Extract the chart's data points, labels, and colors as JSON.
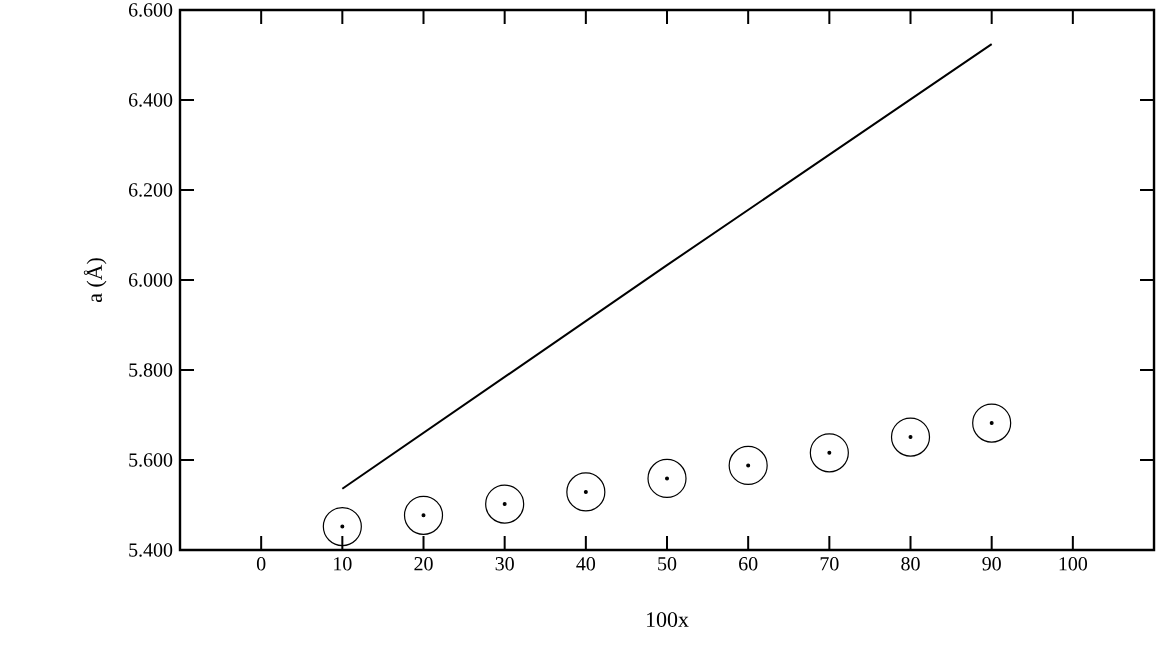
{
  "chart_data": {
    "type": "scatter",
    "xlabel": "100x",
    "ylabel": "a (Å)",
    "xlim": [
      -10,
      110
    ],
    "xticks": [
      0,
      10,
      20,
      30,
      40,
      50,
      60,
      70,
      80,
      90,
      100
    ],
    "ylim": [
      5.4,
      6.6
    ],
    "yticks": [
      {
        "value": 5.4,
        "label": "5.400"
      },
      {
        "value": 5.6,
        "label": "5.600"
      },
      {
        "value": 5.8,
        "label": "5.800"
      },
      {
        "value": 6.0,
        "label": "6.000"
      },
      {
        "value": 6.2,
        "label": "6.200"
      },
      {
        "value": 6.4,
        "label": "6.400"
      },
      {
        "value": 6.6,
        "label": "6.600"
      }
    ],
    "grid": false,
    "series": [
      {
        "type": "line",
        "marker": "none",
        "line_style": "solid",
        "color": "#000000",
        "x": [
          10,
          50,
          90
        ],
        "values": [
          5.536,
          6.033,
          6.524
        ]
      },
      {
        "marker": "circle",
        "color": "#000000",
        "x": [
          10,
          20,
          30,
          40,
          50,
          60,
          70,
          80,
          90
        ],
        "values": [
          5.452,
          5.477,
          5.502,
          5.529,
          5.559,
          5.588,
          5.616,
          5.651,
          5.682
        ]
      }
    ]
  }
}
